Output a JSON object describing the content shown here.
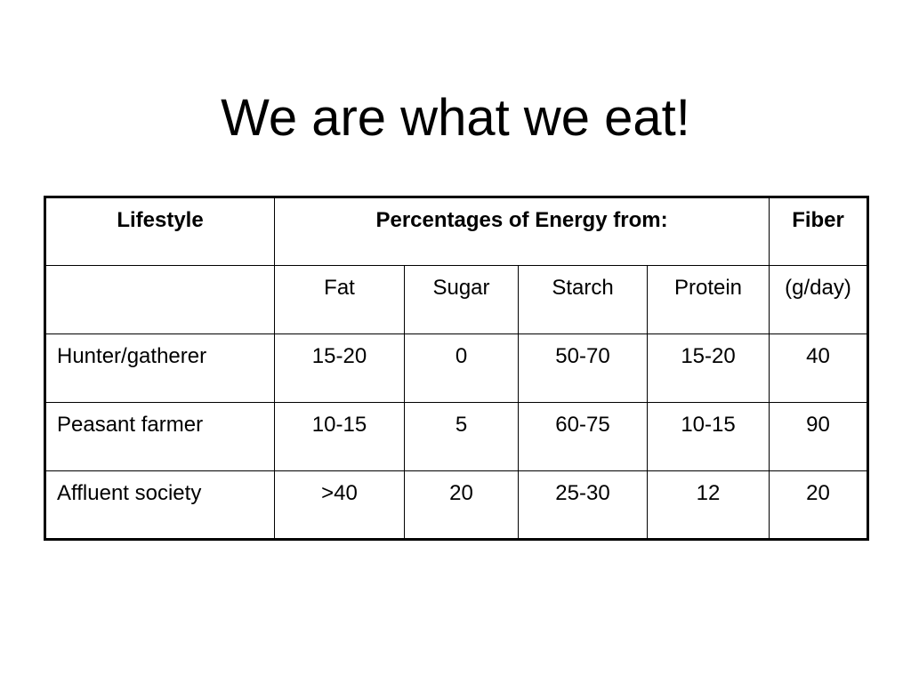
{
  "slide": {
    "title": "We are what we eat!"
  },
  "table": {
    "header": {
      "lifestyle": "Lifestyle",
      "energy": "Percentages of Energy from:",
      "fiber": "Fiber"
    },
    "subheader": {
      "lifestyle": "",
      "fat": "Fat",
      "sugar": "Sugar",
      "starch": "Starch",
      "protein": "Protein",
      "fiber": "(g/day)"
    },
    "rows": [
      {
        "lifestyle": "Hunter/gatherer",
        "fat": "15-20",
        "sugar": "0",
        "starch": "50-70",
        "protein": "15-20",
        "fiber": "40"
      },
      {
        "lifestyle": "Peasant farmer",
        "fat": "10-15",
        "sugar": "5",
        "starch": "60-75",
        "protein": "10-15",
        "fiber": "90"
      },
      {
        "lifestyle": "Affluent society",
        "fat": ">40",
        "sugar": "20",
        "starch": "25-30",
        "protein": "12",
        "fiber": "20"
      }
    ]
  }
}
